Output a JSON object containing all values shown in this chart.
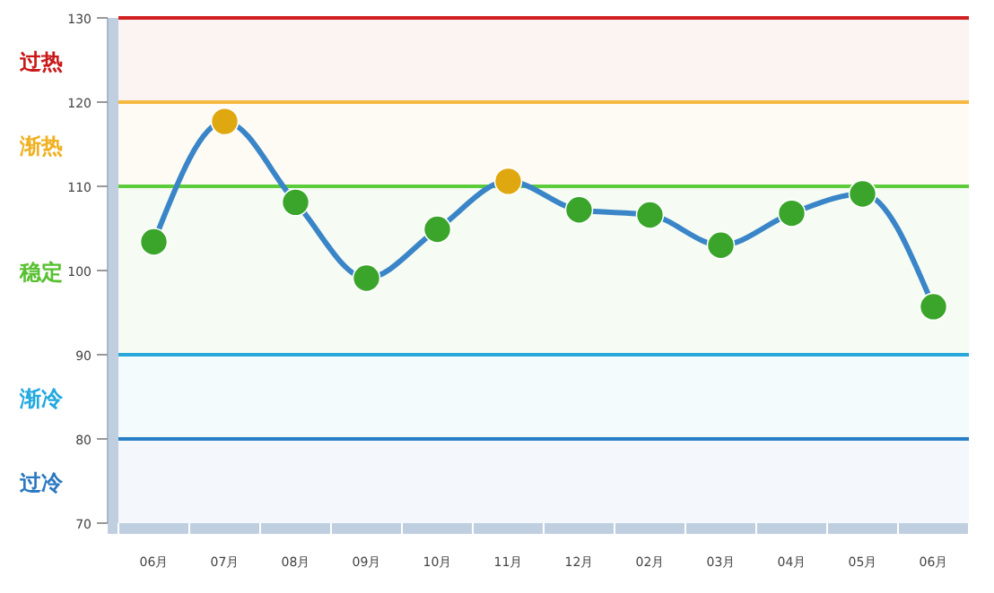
{
  "chart_data": {
    "type": "line",
    "categories": [
      "06月",
      "07月",
      "08月",
      "09月",
      "10月",
      "11月",
      "12月",
      "02月",
      "03月",
      "04月",
      "05月",
      "06月"
    ],
    "series": [
      {
        "color": "#3a85c8",
        "values": [
          103.4,
          117.7,
          108.1,
          99.1,
          104.9,
          110.6,
          107.2,
          106.6,
          103.0,
          106.8,
          109.1,
          95.7
        ],
        "colors": [
          "#3aa52a",
          "#e0a810",
          "#3aa52a",
          "#3aa52a",
          "#3aa52a",
          "#e0a810",
          "#3aa52a",
          "#3aa52a",
          "#3aa52a",
          "#3aa52a",
          "#3aa52a",
          "#3aa52a"
        ]
      }
    ],
    "ylim": [
      70,
      130
    ],
    "yticks": [
      70,
      80,
      90,
      100,
      110,
      120,
      130
    ],
    "marker": "circle",
    "grid": false,
    "ref_lines": [
      {
        "axis": "y",
        "value": 130,
        "color": "#d02020"
      },
      {
        "axis": "y",
        "value": 120,
        "color": "#f5b840"
      },
      {
        "axis": "y",
        "value": 110,
        "color": "#5ccc3a"
      },
      {
        "axis": "y",
        "value": 90,
        "color": "#28a8d8"
      },
      {
        "axis": "y",
        "value": 80,
        "color": "#2a80c8"
      }
    ],
    "bands": [
      {
        "axis": "y",
        "from": 120,
        "to": 130,
        "label": "过热",
        "color": "#c81818"
      },
      {
        "axis": "y",
        "from": 110,
        "to": 120,
        "label": "渐热",
        "color": "#f0b020"
      },
      {
        "axis": "y",
        "from": 90,
        "to": 110,
        "label": "稳定",
        "color": "#58c030"
      },
      {
        "axis": "y",
        "from": 80,
        "to": 90,
        "label": "渐冷",
        "color": "#20a8e0"
      },
      {
        "axis": "y",
        "from": 70,
        "to": 80,
        "label": "过冷",
        "color": "#2a78c0"
      }
    ]
  }
}
